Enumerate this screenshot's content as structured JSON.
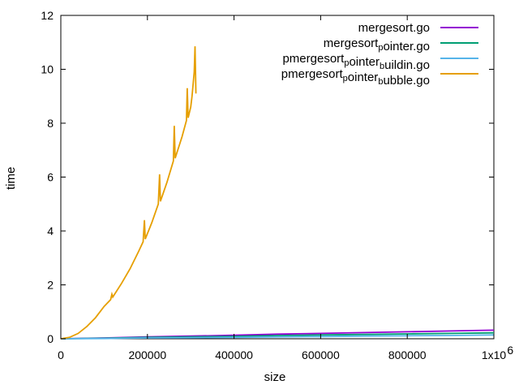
{
  "chart_data": {
    "type": "line",
    "title": "",
    "xlabel": "size",
    "ylabel": "time",
    "xlim": [
      0,
      1000000
    ],
    "ylim": [
      0,
      12
    ],
    "x_ticks": [
      0,
      200000,
      400000,
      600000,
      800000,
      1000000
    ],
    "x_tick_labels": [
      "0",
      "200000",
      "400000",
      "600000",
      "800000",
      "1x10"
    ],
    "x_tick_exponent": "6",
    "y_ticks": [
      0,
      2,
      4,
      6,
      8,
      10,
      12
    ],
    "y_tick_labels": [
      "0",
      "2",
      "4",
      "6",
      "8",
      "10",
      "12"
    ],
    "grid": false,
    "legend_position": "top-right",
    "series": [
      {
        "name": "mergesort.go",
        "legend": {
          "parts": [
            {
              "t": "mergesort.go",
              "sub": false
            }
          ]
        },
        "color": "#9400d3",
        "x": [
          0,
          100000,
          200000,
          300000,
          400000,
          500000,
          600000,
          700000,
          800000,
          900000,
          1000000
        ],
        "y": [
          0,
          0.03,
          0.07,
          0.1,
          0.13,
          0.17,
          0.2,
          0.23,
          0.26,
          0.29,
          0.32
        ]
      },
      {
        "name": "mergesort_pointer.go",
        "legend": {
          "parts": [
            {
              "t": "mergesort",
              "sub": false
            },
            {
              "t": "p",
              "sub": true
            },
            {
              "t": "ointer.go",
              "sub": false
            }
          ]
        },
        "color": "#009e73",
        "x": [
          0,
          100000,
          200000,
          300000,
          400000,
          500000,
          600000,
          700000,
          800000,
          900000,
          1000000
        ],
        "y": [
          0,
          0.02,
          0.05,
          0.07,
          0.09,
          0.12,
          0.14,
          0.16,
          0.18,
          0.2,
          0.22
        ]
      },
      {
        "name": "pmergesort_pointer_buildin.go",
        "legend": {
          "parts": [
            {
              "t": "pmergesort",
              "sub": false
            },
            {
              "t": "p",
              "sub": true
            },
            {
              "t": "ointer",
              "sub": false
            },
            {
              "t": "b",
              "sub": true
            },
            {
              "t": "uildin.go",
              "sub": false
            }
          ]
        },
        "color": "#56b4e9",
        "x": [
          0,
          100000,
          200000,
          300000,
          400000,
          500000,
          600000,
          700000,
          800000,
          900000,
          1000000
        ],
        "y": [
          0,
          0.01,
          0.03,
          0.04,
          0.05,
          0.07,
          0.08,
          0.1,
          0.11,
          0.12,
          0.14
        ]
      },
      {
        "name": "pmergesort_pointer_bubble.go",
        "legend": {
          "parts": [
            {
              "t": "pmergesort",
              "sub": false
            },
            {
              "t": "p",
              "sub": true
            },
            {
              "t": "ointer",
              "sub": false
            },
            {
              "t": "b",
              "sub": true
            },
            {
              "t": "ubble.go",
              "sub": false
            }
          ]
        },
        "color": "#e69f00",
        "x": [
          0,
          20000,
          40000,
          60000,
          80000,
          100000,
          115000,
          118000,
          120000,
          140000,
          160000,
          180000,
          190000,
          193000,
          195000,
          210000,
          225000,
          228000,
          230000,
          245000,
          260000,
          262000,
          264000,
          280000,
          290000,
          292000,
          294000,
          300000,
          303000,
          308000,
          310000,
          312000
        ],
        "y": [
          0,
          0.05,
          0.2,
          0.45,
          0.78,
          1.2,
          1.45,
          1.65,
          1.55,
          2.05,
          2.6,
          3.25,
          3.6,
          4.4,
          3.7,
          4.3,
          5.0,
          6.1,
          5.1,
          5.8,
          6.6,
          7.9,
          6.7,
          7.5,
          8.1,
          9.3,
          8.2,
          8.6,
          9.0,
          9.9,
          10.85,
          9.1
        ]
      }
    ]
  }
}
